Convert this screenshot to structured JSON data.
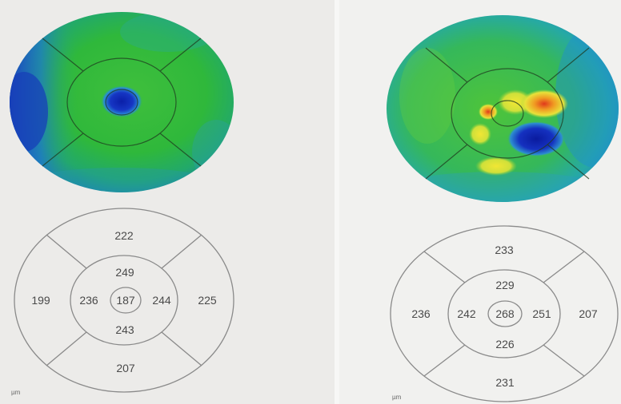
{
  "left": {
    "sectors": {
      "outer_top": "222",
      "outer_left": "199",
      "outer_right": "225",
      "outer_bottom": "207",
      "inner_top": "249",
      "inner_left": "236",
      "inner_right": "244",
      "inner_bottom": "243",
      "center": "187"
    },
    "unit": "µm"
  },
  "right": {
    "sectors": {
      "outer_top": "233",
      "outer_left": "236",
      "outer_right": "207",
      "outer_bottom": "231",
      "inner_top": "229",
      "inner_left": "242",
      "inner_right": "251",
      "inner_bottom": "226",
      "center": "268"
    },
    "unit": "µm"
  }
}
